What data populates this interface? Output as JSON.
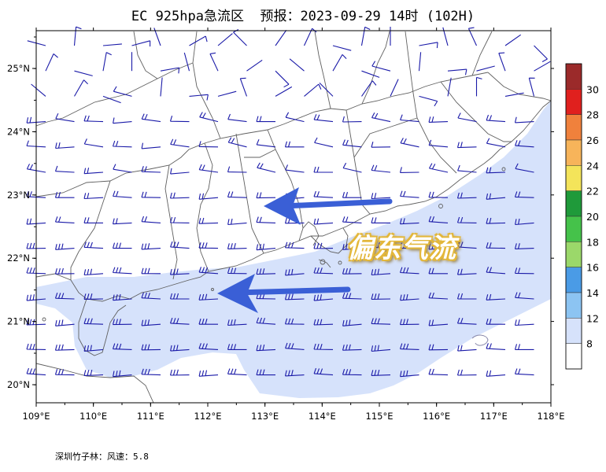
{
  "title": "EC 925hpa急流区  预报：2023-09-29 14时 (102H)",
  "footer": "深圳竹子林：风速：5.8",
  "annotation": "偏东气流",
  "axes": {
    "lon_ticks": [
      "109°E",
      "110°E",
      "111°E",
      "112°E",
      "113°E",
      "114°E",
      "115°E",
      "116°E",
      "117°E",
      "118°E"
    ],
    "lat_ticks": [
      "25°N",
      "24°N",
      "23°N",
      "22°N",
      "21°N",
      "20°N"
    ]
  },
  "colorbar": {
    "labels": [
      "30",
      "28",
      "26",
      "24",
      "22",
      "20",
      "18",
      "16",
      "14",
      "12",
      "8"
    ],
    "colors": [
      "#9b2a2a",
      "#e0201e",
      "#f0813c",
      "#f7b45a",
      "#f4e45a",
      "#1f9a3a",
      "#45c24a",
      "#9bd86a",
      "#4a9be6",
      "#8cc4f2",
      "#d6e2fb",
      "#ffffff"
    ]
  },
  "colors": {
    "jet_fill": "#d6e2fb",
    "barb": "#1a1aa8",
    "arrow": "#3a5fd6",
    "land_border": "#606060"
  }
}
